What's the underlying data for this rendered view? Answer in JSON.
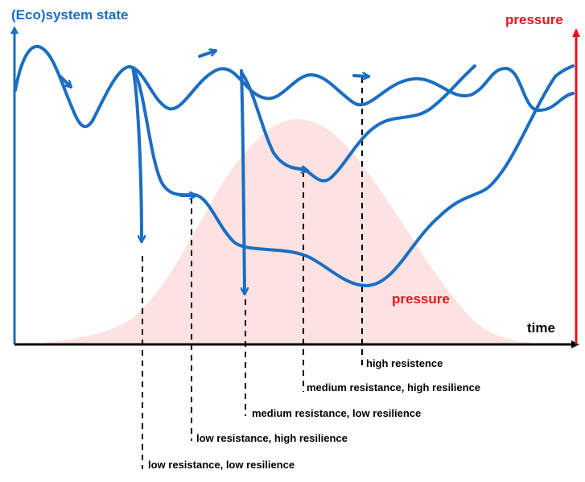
{
  "y_axis_label": "(Eco)system state",
  "secondary_axis_label": "pressure",
  "x_axis_label": "time",
  "pressure_curve_label": "pressure",
  "outcome_labels": [
    "high resistence",
    "medium resistance, high resilience",
    "medium resistance, low resilience",
    "low resistance, high resilience",
    "low resistance, low resilience"
  ],
  "colors": {
    "state": "#1b6ec2",
    "pressure": "#e8141c",
    "pressure_fill": "#fde2e2",
    "axis": "#000000"
  }
}
